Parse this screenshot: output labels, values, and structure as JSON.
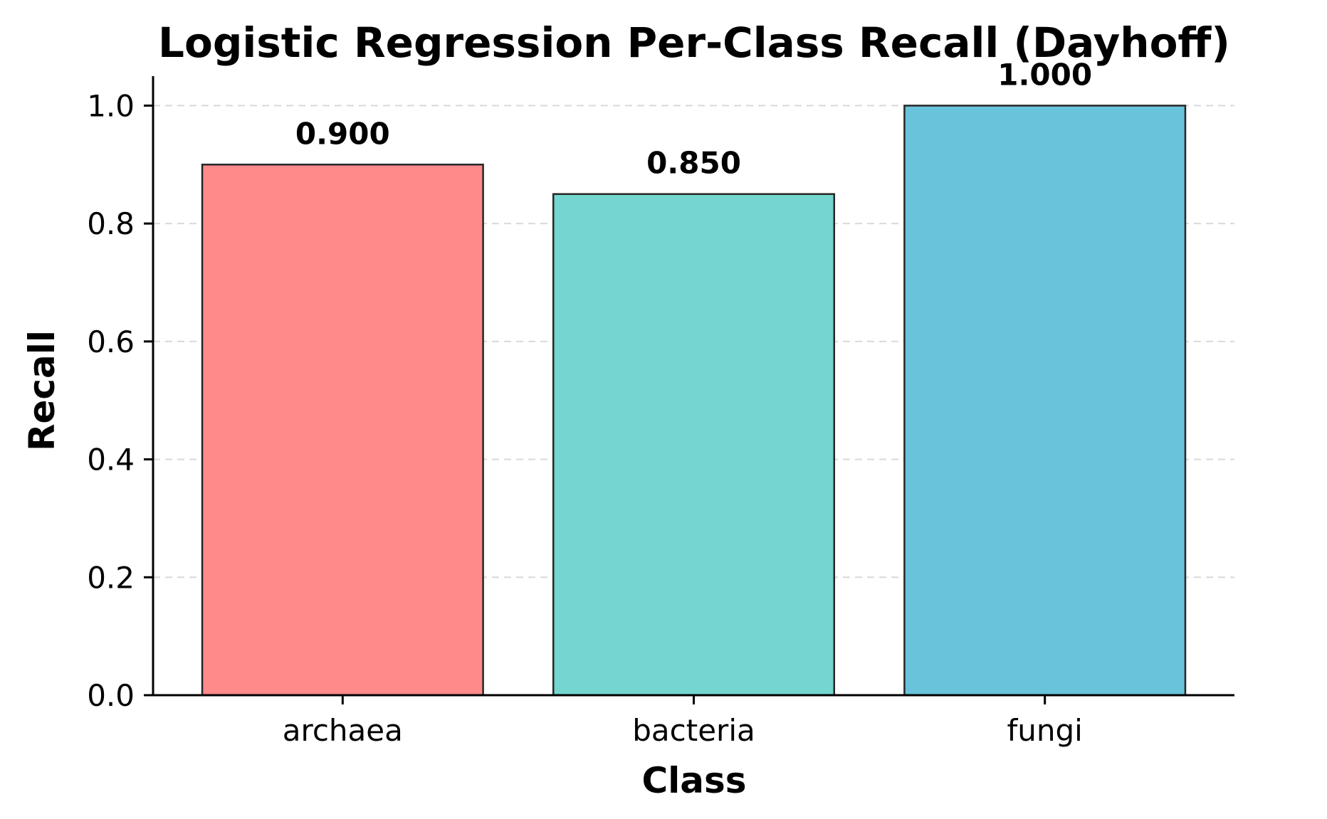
{
  "chart_data": {
    "type": "bar",
    "title": "Logistic Regression Per-Class Recall (Dayhoff)",
    "xlabel": "Class",
    "ylabel": "Recall",
    "categories": [
      "archaea",
      "bacteria",
      "fungi"
    ],
    "values": [
      0.9,
      0.85,
      1.0
    ],
    "value_labels": [
      "0.900",
      "0.850",
      "1.000"
    ],
    "colors": [
      "#ff8a8a",
      "#74d6cf",
      "#69c3da"
    ],
    "ylim": [
      0,
      1.05
    ],
    "yticks": [
      0.0,
      0.2,
      0.4,
      0.6,
      0.8,
      1.0
    ],
    "ytick_labels": [
      "0.0",
      "0.2",
      "0.4",
      "0.6",
      "0.8",
      "1.0"
    ],
    "grid": "y-dashed",
    "legend": "none"
  }
}
